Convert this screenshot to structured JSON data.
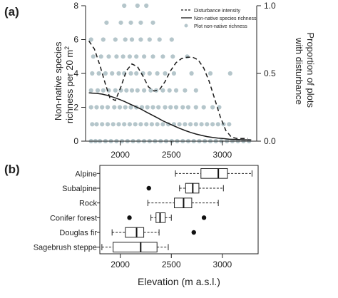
{
  "chart_data": [
    {
      "panel_label": "(a)",
      "type": "scatter",
      "xlabel": "",
      "x_ticks": [
        2000,
        2500,
        3000
      ],
      "xlim": [
        1800,
        3350
      ],
      "y_left": {
        "label_line1": "Non-native species",
        "label_line2": "richness per 20 m",
        "label_superscript": "2",
        "ticks": [
          0,
          2,
          4,
          6,
          8
        ],
        "lim": [
          0,
          8
        ]
      },
      "y_right": {
        "label_line1": "Proportion of plots",
        "label_line2": "with disturbance",
        "ticks": [
          "0.0",
          "0.5",
          "1.0"
        ],
        "lim": [
          0,
          1
        ]
      },
      "legend_position": "top-right",
      "colors": {
        "points": "#b5c6cb",
        "lines": "#1a1a1a"
      },
      "series": [
        {
          "name": "Disturbance intensity",
          "style": "dashed",
          "axis": "right",
          "x": [
            1830,
            1880,
            1930,
            1980,
            2020,
            2070,
            2120,
            2170,
            2220,
            2270,
            2320,
            2370,
            2420,
            2470,
            2520,
            2570,
            2620,
            2670,
            2720,
            2770,
            2820,
            2870,
            2920,
            2970,
            3020,
            3070,
            3120,
            3170,
            3220,
            3270
          ],
          "y": [
            0.74,
            0.68,
            0.56,
            0.42,
            0.32,
            0.3,
            0.4,
            0.52,
            0.57,
            0.55,
            0.48,
            0.4,
            0.37,
            0.38,
            0.44,
            0.52,
            0.58,
            0.61,
            0.62,
            0.62,
            0.6,
            0.54,
            0.44,
            0.31,
            0.18,
            0.08,
            0.03,
            0.02,
            0.02,
            0.02
          ]
        },
        {
          "name": "Non-native species richness",
          "style": "solid",
          "axis": "left",
          "x": [
            1830,
            1900,
            1950,
            2000,
            2050,
            2100,
            2150,
            2200,
            2250,
            2300,
            2350,
            2400,
            2450,
            2500,
            2550,
            2600,
            2650,
            2700,
            2750,
            2800,
            2850,
            2900,
            2950,
            3000,
            3050,
            3100,
            3150,
            3200,
            3250,
            3300
          ],
          "y": [
            2.85,
            2.82,
            2.78,
            2.7,
            2.6,
            2.48,
            2.35,
            2.2,
            2.05,
            1.9,
            1.72,
            1.55,
            1.38,
            1.2,
            1.05,
            0.9,
            0.76,
            0.63,
            0.52,
            0.42,
            0.34,
            0.27,
            0.22,
            0.18,
            0.15,
            0.12,
            0.1,
            0.09,
            0.08,
            0.07
          ]
        },
        {
          "name": "Plot non-native richness",
          "style": "points",
          "axis": "left",
          "points": [
            [
              1850,
              0
            ],
            [
              1890,
              0
            ],
            [
              1930,
              0
            ],
            [
              1980,
              0
            ],
            [
              2030,
              0
            ],
            [
              2080,
              0
            ],
            [
              2130,
              0
            ],
            [
              2180,
              0
            ],
            [
              2230,
              0
            ],
            [
              2280,
              0
            ],
            [
              2330,
              0
            ],
            [
              2380,
              0
            ],
            [
              2430,
              0
            ],
            [
              2480,
              0
            ],
            [
              2530,
              0
            ],
            [
              2580,
              0
            ],
            [
              2630,
              0
            ],
            [
              2680,
              0
            ],
            [
              2730,
              0
            ],
            [
              2780,
              0
            ],
            [
              2830,
              0
            ],
            [
              2880,
              0
            ],
            [
              2930,
              0
            ],
            [
              2980,
              0
            ],
            [
              3030,
              0
            ],
            [
              3080,
              0
            ],
            [
              3130,
              0
            ],
            [
              3180,
              0
            ],
            [
              3230,
              0
            ],
            [
              3280,
              0
            ],
            [
              1860,
              1
            ],
            [
              1900,
              1
            ],
            [
              1950,
              1
            ],
            [
              2000,
              1
            ],
            [
              2050,
              1
            ],
            [
              2100,
              1
            ],
            [
              2150,
              1
            ],
            [
              2200,
              1
            ],
            [
              2250,
              1
            ],
            [
              2300,
              1
            ],
            [
              2350,
              1
            ],
            [
              2400,
              1
            ],
            [
              2450,
              1
            ],
            [
              2500,
              1
            ],
            [
              2550,
              1
            ],
            [
              2600,
              1
            ],
            [
              2650,
              1
            ],
            [
              2700,
              1
            ],
            [
              2750,
              1
            ],
            [
              2800,
              1
            ],
            [
              2850,
              1
            ],
            [
              2900,
              1
            ],
            [
              2950,
              1
            ],
            [
              3000,
              1
            ],
            [
              3050,
              1
            ],
            [
              3100,
              1
            ],
            [
              1850,
              2
            ],
            [
              1900,
              2
            ],
            [
              1950,
              2
            ],
            [
              2000,
              2
            ],
            [
              2060,
              2
            ],
            [
              2110,
              2
            ],
            [
              2160,
              2
            ],
            [
              2210,
              2
            ],
            [
              2260,
              2
            ],
            [
              2310,
              2
            ],
            [
              2360,
              2
            ],
            [
              2410,
              2
            ],
            [
              2460,
              2
            ],
            [
              2520,
              2
            ],
            [
              2570,
              2
            ],
            [
              2620,
              2
            ],
            [
              2680,
              2
            ],
            [
              2730,
              2
            ],
            [
              2800,
              2
            ],
            [
              2870,
              2
            ],
            [
              2950,
              2
            ],
            [
              3010,
              2
            ],
            [
              1850,
              3
            ],
            [
              1910,
              3
            ],
            [
              1960,
              3
            ],
            [
              2010,
              3
            ],
            [
              2070,
              3
            ],
            [
              2120,
              3
            ],
            [
              2170,
              3
            ],
            [
              2220,
              3
            ],
            [
              2270,
              3
            ],
            [
              2330,
              3
            ],
            [
              2390,
              3
            ],
            [
              2440,
              3
            ],
            [
              2500,
              3
            ],
            [
              2560,
              3
            ],
            [
              2620,
              3
            ],
            [
              2700,
              3
            ],
            [
              2800,
              3
            ],
            [
              1860,
              4
            ],
            [
              1920,
              4
            ],
            [
              1980,
              4
            ],
            [
              2040,
              4
            ],
            [
              2100,
              4
            ],
            [
              2150,
              4
            ],
            [
              2210,
              4
            ],
            [
              2260,
              4
            ],
            [
              2320,
              4
            ],
            [
              2380,
              4
            ],
            [
              2450,
              4
            ],
            [
              2520,
              4
            ],
            [
              2600,
              4
            ],
            [
              2760,
              4
            ],
            [
              2930,
              4
            ],
            [
              3110,
              4
            ],
            [
              1870,
              5
            ],
            [
              1940,
              5
            ],
            [
              2010,
              5
            ],
            [
              2080,
              5
            ],
            [
              2140,
              5
            ],
            [
              2200,
              5
            ],
            [
              2260,
              5
            ],
            [
              2330,
              5
            ],
            [
              2410,
              5
            ],
            [
              2500,
              5
            ],
            [
              2590,
              5
            ],
            [
              2720,
              5
            ],
            [
              1850,
              6
            ],
            [
              1960,
              6
            ],
            [
              2070,
              6
            ],
            [
              2160,
              6
            ],
            [
              2220,
              6
            ],
            [
              2300,
              6
            ],
            [
              2380,
              6
            ],
            [
              2470,
              6
            ],
            [
              2580,
              6
            ],
            [
              1990,
              7
            ],
            [
              2120,
              7
            ],
            [
              2210,
              7
            ],
            [
              2300,
              7
            ],
            [
              2410,
              7
            ],
            [
              2150,
              8
            ],
            [
              2270,
              8
            ],
            [
              2350,
              8
            ]
          ]
        }
      ]
    },
    {
      "panel_label": "(b)",
      "type": "boxplot",
      "xlabel": "Elevation (m a.s.l.)",
      "x_ticks": [
        2000,
        2500,
        3000
      ],
      "xlim": [
        1800,
        3350
      ],
      "colors": {
        "box": "#ffffff",
        "stroke": "#1a1a1a"
      },
      "categories": [
        "Alpine",
        "Subalpine",
        "Rock",
        "Conifer forest",
        "Douglas fir",
        "Sagebrush steppe"
      ],
      "boxes": [
        {
          "whisker_low": 2540,
          "q1": 2790,
          "median": 2960,
          "q3": 3050,
          "whisker_high": 3290,
          "outliers": []
        },
        {
          "whisker_low": 2580,
          "q1": 2640,
          "median": 2710,
          "q3": 2770,
          "whisker_high": 3010,
          "outliers": [
            2280
          ]
        },
        {
          "whisker_low": 2270,
          "q1": 2530,
          "median": 2620,
          "q3": 2700,
          "whisker_high": 2960,
          "outliers": []
        },
        {
          "whisker_low": 2300,
          "q1": 2350,
          "median": 2390,
          "q3": 2440,
          "whisker_high": 2500,
          "outliers": [
            2090,
            2820
          ]
        },
        {
          "whisker_low": 1920,
          "q1": 2050,
          "median": 2160,
          "q3": 2230,
          "whisker_high": 2380,
          "outliers": [
            2720
          ]
        },
        {
          "whisker_low": 1820,
          "q1": 1930,
          "median": 2200,
          "q3": 2360,
          "whisker_high": 2470,
          "outliers": []
        }
      ]
    }
  ],
  "legend": [
    {
      "label": "Disturbance intensity",
      "style": "dashed"
    },
    {
      "label": "Non-native species richness",
      "style": "solid"
    },
    {
      "label": "Plot non-native richness",
      "style": "point"
    }
  ]
}
